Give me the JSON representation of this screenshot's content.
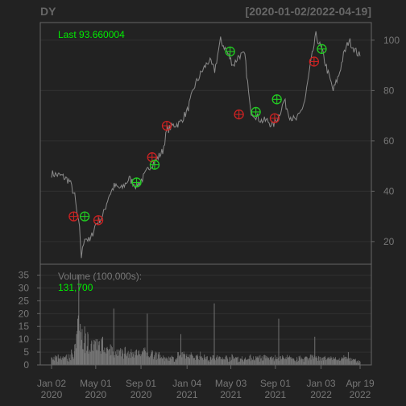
{
  "colors": {
    "background": "#222222",
    "panel_border": "#666666",
    "grid": "#303030",
    "axis_text": "#777777",
    "price_line": "#8a8a8a",
    "volume_bar": "#7a7a7a",
    "buy_marker": "#22cc22",
    "sell_marker": "#cc2222",
    "last_label": "#00ee00"
  },
  "header": {
    "symbol": "DY",
    "date_range": "[2020-01-02/2022-04-19]"
  },
  "price_panel": {
    "last_label": "Last 93.660004"
  },
  "volume_panel": {
    "label": "Volume (100,000s):",
    "last_value": "131,700"
  },
  "chart_data": [
    {
      "type": "line",
      "name": "price",
      "x_domain": [
        "2020-01-02",
        "2022-04-19"
      ],
      "ylim": [
        11,
        107
      ],
      "y_ticks": [
        20,
        40,
        60,
        80,
        100
      ],
      "y_axis_side": "right",
      "grid": true,
      "x": [
        "2020-01-02",
        "2020-01-31",
        "2020-02-20",
        "2020-03-05",
        "2020-03-12",
        "2020-03-18",
        "2020-03-23",
        "2020-04-01",
        "2020-04-15",
        "2020-05-01",
        "2020-05-20",
        "2020-06-05",
        "2020-06-20",
        "2020-07-10",
        "2020-07-31",
        "2020-08-20",
        "2020-09-10",
        "2020-09-25",
        "2020-10-10",
        "2020-10-30",
        "2020-11-10",
        "2020-11-25",
        "2020-12-15",
        "2021-01-05",
        "2021-01-25",
        "2021-02-15",
        "2021-03-05",
        "2021-03-20",
        "2021-04-05",
        "2021-04-20",
        "2021-05-10",
        "2021-05-25",
        "2021-06-10",
        "2021-06-25",
        "2021-07-10",
        "2021-07-25",
        "2021-08-10",
        "2021-08-25",
        "2021-09-10",
        "2021-09-25",
        "2021-10-10",
        "2021-10-25",
        "2021-11-05",
        "2021-11-20",
        "2021-12-05",
        "2021-12-20",
        "2022-01-05",
        "2022-01-20",
        "2022-02-05",
        "2022-02-20",
        "2022-03-05",
        "2022-03-20",
        "2022-04-05",
        "2022-04-19"
      ],
      "values": [
        47,
        46,
        44,
        38,
        30,
        25,
        14,
        22,
        20,
        27,
        30,
        38,
        42,
        41,
        45,
        42,
        46,
        50,
        52,
        56,
        64,
        66,
        67,
        72,
        82,
        88,
        92,
        88,
        100,
        96,
        90,
        94,
        94,
        72,
        70,
        68,
        68,
        66,
        70,
        76,
        70,
        68,
        70,
        76,
        90,
        102,
        96,
        88,
        80,
        86,
        94,
        100,
        96,
        93.66
      ],
      "markers": [
        {
          "date": "2020-03-02",
          "price": 30,
          "signal": "sell"
        },
        {
          "date": "2020-04-01",
          "price": 30,
          "signal": "buy"
        },
        {
          "date": "2020-05-08",
          "price": 28.5,
          "signal": "sell"
        },
        {
          "date": "2020-08-20",
          "price": 43.5,
          "signal": "buy"
        },
        {
          "date": "2020-10-01",
          "price": 53.5,
          "signal": "sell"
        },
        {
          "date": "2020-10-08",
          "price": 50.5,
          "signal": "buy"
        },
        {
          "date": "2020-11-10",
          "price": 66,
          "signal": "sell"
        },
        {
          "date": "2021-05-01",
          "price": 95.5,
          "signal": "buy"
        },
        {
          "date": "2021-05-25",
          "price": 70.5,
          "signal": "sell"
        },
        {
          "date": "2021-07-10",
          "price": 71.5,
          "signal": "buy"
        },
        {
          "date": "2021-08-30",
          "price": 69,
          "signal": "sell"
        },
        {
          "date": "2021-09-05",
          "price": 76.5,
          "signal": "buy"
        },
        {
          "date": "2021-12-15",
          "price": 91.5,
          "signal": "sell"
        },
        {
          "date": "2022-01-05",
          "price": 96.5,
          "signal": "buy"
        }
      ]
    },
    {
      "type": "bar",
      "name": "volume",
      "unit": "100,000s",
      "ylim": [
        0,
        38
      ],
      "y_ticks": [
        0,
        5,
        10,
        15,
        20,
        25,
        30,
        35
      ],
      "y_axis_side": "left",
      "x_ticks": [
        {
          "date": "2020-01-02",
          "label": "Jan 02",
          "year": "2020"
        },
        {
          "date": "2020-05-01",
          "label": "May 01",
          "year": "2020"
        },
        {
          "date": "2020-09-01",
          "label": "Sep 01",
          "year": "2020"
        },
        {
          "date": "2021-01-04",
          "label": "Jan 04",
          "year": "2021"
        },
        {
          "date": "2021-05-03",
          "label": "May 03",
          "year": "2021"
        },
        {
          "date": "2021-09-01",
          "label": "Sep 01",
          "year": "2021"
        },
        {
          "date": "2022-01-03",
          "label": "Jan 03",
          "year": "2022"
        },
        {
          "date": "2022-04-19",
          "label": "Apr 19",
          "year": "2022"
        }
      ],
      "x": [
        "2020-01-02",
        "2020-01-20",
        "2020-02-05",
        "2020-02-25",
        "2020-03-05",
        "2020-03-10",
        "2020-03-13",
        "2020-03-16",
        "2020-03-20",
        "2020-03-25",
        "2020-04-01",
        "2020-04-10",
        "2020-04-20",
        "2020-05-05",
        "2020-05-20",
        "2020-06-01",
        "2020-06-10",
        "2020-06-19",
        "2020-07-01",
        "2020-07-20",
        "2020-08-10",
        "2020-08-20",
        "2020-09-10",
        "2020-09-18",
        "2020-10-01",
        "2020-10-20",
        "2020-11-05",
        "2020-11-20",
        "2020-12-10",
        "2020-12-18",
        "2021-01-10",
        "2021-02-01",
        "2021-02-20",
        "2021-03-10",
        "2021-03-19",
        "2021-04-10",
        "2021-05-01",
        "2021-05-20",
        "2021-06-10",
        "2021-06-25",
        "2021-07-15",
        "2021-08-01",
        "2021-08-20",
        "2021-09-10",
        "2021-09-20",
        "2021-10-10",
        "2021-10-30",
        "2021-11-20",
        "2021-12-05",
        "2021-12-17",
        "2022-01-10",
        "2022-01-25",
        "2022-02-10",
        "2022-03-01",
        "2022-03-18",
        "2022-04-05",
        "2022-04-19"
      ],
      "values": [
        3,
        4,
        3,
        6,
        8,
        12,
        18,
        35,
        16,
        14,
        15,
        12,
        9,
        10,
        11,
        7,
        8,
        22,
        6,
        7,
        5,
        6,
        6,
        20,
        5,
        5,
        3,
        3,
        5,
        12,
        4,
        4,
        4,
        3,
        24,
        3,
        3,
        3,
        2.5,
        4,
        3,
        3,
        3,
        18,
        3,
        3,
        2.5,
        3,
        4,
        11,
        3,
        2.5,
        2.5,
        3,
        5,
        2,
        1.3
      ]
    }
  ]
}
